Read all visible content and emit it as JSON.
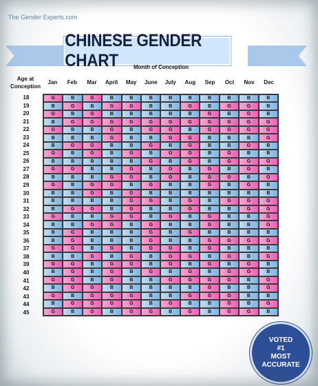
{
  "site": "The Gender Experts.com",
  "title": "CHINESE GENDER CHART",
  "month_label": "Month of Conception",
  "age_label_line1": "Age at",
  "age_label_line2": "Conception",
  "months": [
    "Jan",
    "Feb",
    "Mar",
    "April",
    "May",
    "June",
    "July",
    "Aug",
    "Sep",
    "Oct",
    "Nov",
    "Dec"
  ],
  "ages": [
    "18",
    "19",
    "20",
    "21",
    "22",
    "23",
    "24",
    "25",
    "26",
    "27",
    "28",
    "29",
    "30",
    "31",
    "32",
    "33",
    "34",
    "35",
    "36",
    "37",
    "38",
    "39",
    "40",
    "41",
    "42",
    "43",
    "44",
    "45"
  ],
  "rows": [
    "GBGBBBBBBBBB",
    "BGBGGBBGBGGB",
    "GBGBBBBBGBGB",
    "BGGGGGGGGGGG",
    "GBBGBGGBGGGG",
    "BBBGBBGGBBBG",
    "BGGBBGBGBBGB",
    "GBGBGBGGBGBB",
    "BBBBBGBGBGGG",
    "GGBBGBGBGBGB",
    "BBBGGBGBGGBG",
    "GBGGBGBBGBGB",
    "BBGBGBBBBBBB",
    "BBBBGGBGBGGG",
    "BGGBGBBGBBGG",
    "GBBGGBGBGBBG",
    "BBGGBGBBGBBG",
    "BGBBBGBGBBBB",
    "BGBBBGBBGGGG",
    "GGBGBGGBGBBB",
    "BBGBGBGGBGBG",
    "GGBGGBGBGBGB",
    "BGBGBGBGBGGB",
    "GGBGBBGGGGBG",
    "BGGBBBBBGBBG",
    "GBGGGBBGGGBB",
    "BGGGGBGBBGBG",
    "GBGBGGBGBGGB"
  ],
  "badge": {
    "line1": "VOTED",
    "line2": "#1",
    "line3": "MOST",
    "line4": "ACCURATE"
  },
  "colors": {
    "girl": "#ef5fb4",
    "boy": "#7fb3e2",
    "title_bg": "#d1e6fb",
    "badge": "#2d4f97"
  }
}
